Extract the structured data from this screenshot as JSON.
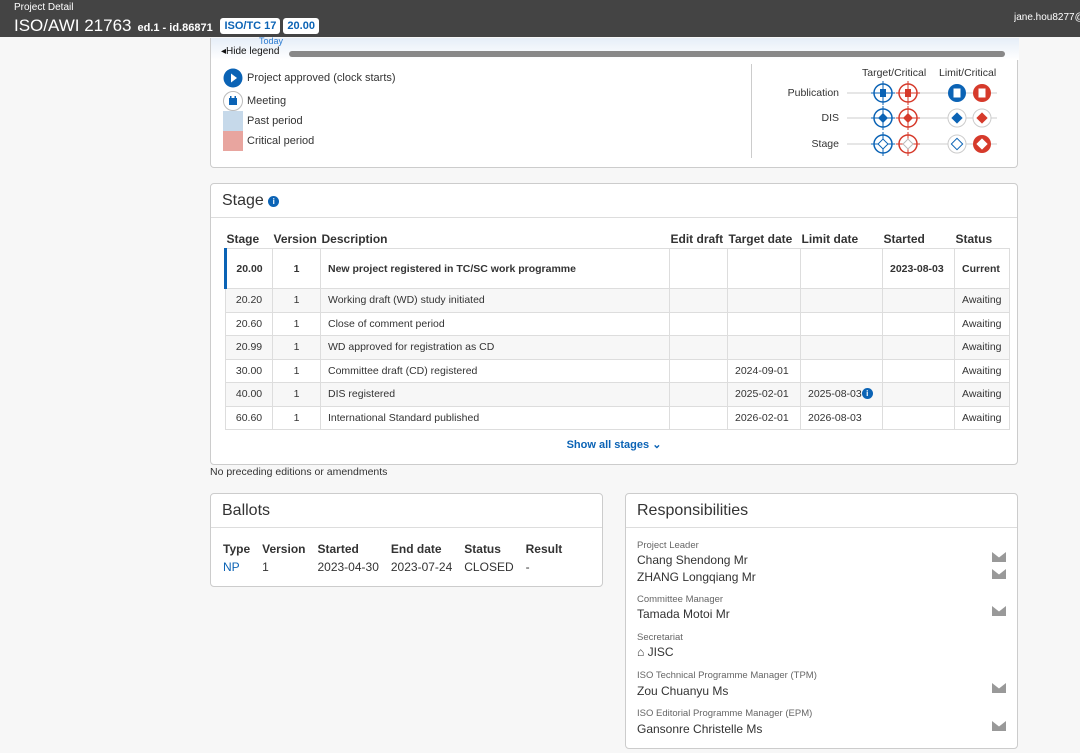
{
  "header": {
    "subtitle": "Project Detail",
    "title": "ISO/AWI 21763",
    "edition": "ed.1 - id.86871",
    "committee_badge": "ISO/TC 17",
    "stage_badge": "20.00",
    "user": "jane.hou8277@"
  },
  "timeline": {
    "today_label": "Today",
    "hide_legend": "Hide legend"
  },
  "legend": {
    "items": [
      "Project approved (clock starts)",
      "Meeting",
      "Past period",
      "Critical period"
    ],
    "col_headers": [
      "Target/Critical",
      "Limit/Critical"
    ],
    "rows": [
      "Publication",
      "DIS",
      "Stage"
    ],
    "colors": {
      "blue": "#0b63b5",
      "red": "#d63a2b",
      "past": "#c6d9ea",
      "critical": "#e8a59f"
    }
  },
  "stage": {
    "title": "Stage",
    "headers": [
      "Stage",
      "Version",
      "Description",
      "Edit draft",
      "Target date",
      "Limit date",
      "Started",
      "Status"
    ],
    "rows": [
      [
        "20.00",
        "1",
        "New project registered in TC/SC work programme",
        "",
        "",
        "",
        "2023-08-03",
        "Current"
      ],
      [
        "20.20",
        "1",
        "Working draft (WD) study initiated",
        "",
        "",
        "",
        "",
        "Awaiting"
      ],
      [
        "20.60",
        "1",
        "Close of comment period",
        "",
        "",
        "",
        "",
        "Awaiting"
      ],
      [
        "20.99",
        "1",
        "WD approved for registration as CD",
        "",
        "",
        "",
        "",
        "Awaiting"
      ],
      [
        "30.00",
        "1",
        "Committee draft (CD) registered",
        "",
        "2024-09-01",
        "",
        "",
        "Awaiting"
      ],
      [
        "40.00",
        "1",
        "DIS registered",
        "",
        "2025-02-01",
        "2025-08-03",
        "",
        "Awaiting"
      ],
      [
        "60.60",
        "1",
        "International Standard published",
        "",
        "2026-02-01",
        "2026-08-03",
        "",
        "Awaiting"
      ]
    ],
    "show_all": "Show all stages"
  },
  "note": "No preceding editions or amendments",
  "ballots": {
    "title": "Ballots",
    "headers": [
      "Type",
      "Version",
      "Started",
      "End date",
      "Status",
      "Result"
    ],
    "rows": [
      [
        "NP",
        "1",
        "2023-04-30",
        "2023-07-24",
        "CLOSED",
        "-"
      ]
    ]
  },
  "responsibilities": {
    "title": "Responsibilities",
    "project_leader_label": "Project Leader",
    "project_leaders": [
      "Chang Shendong Mr",
      "ZHANG Longqiang Mr"
    ],
    "committee_manager_label": "Committee Manager",
    "committee_manager": "Tamada Motoi Mr",
    "secretariat_label": "Secretariat",
    "secretariat": "JISC",
    "tpm_label": "ISO Technical Programme Manager (TPM)",
    "tpm": "Zou Chuanyu Ms",
    "epm_label": "ISO Editorial Programme Manager (EPM)",
    "epm": "Gansonre Christelle Ms"
  }
}
